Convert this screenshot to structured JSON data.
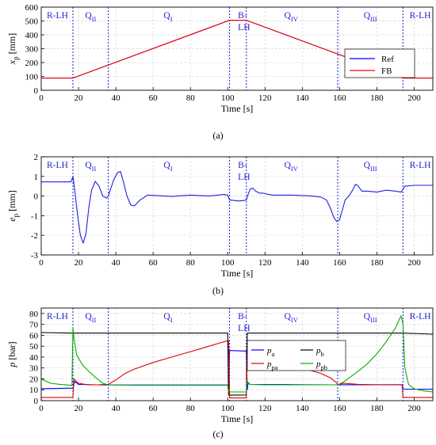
{
  "chart_data": [
    {
      "type": "line",
      "caption": "(a)",
      "xlabel": "Time [s]",
      "ylabel_main": "x",
      "ylabel_sub": "p",
      "ylabel_unit": "[mm]",
      "xlim": [
        0,
        210
      ],
      "ylim": [
        0,
        600
      ],
      "xticks": [
        0,
        20,
        40,
        60,
        80,
        100,
        120,
        140,
        160,
        180,
        200
      ],
      "yticks": [
        0,
        100,
        200,
        300,
        400,
        500,
        600
      ],
      "grid": true,
      "legend_position": "right",
      "boundaries": [
        17,
        36,
        101,
        110,
        159,
        194
      ],
      "regions": [
        {
          "lines": [
            "R-LH"
          ],
          "x": 3
        },
        {
          "main": "Q",
          "sub": "II",
          "x": 26.5
        },
        {
          "main": "Q",
          "sub": "I",
          "x": 68
        },
        {
          "lines": [
            "B-",
            "LH"
          ],
          "x": 105.5
        },
        {
          "main": "Q",
          "sub": "IV",
          "x": 134
        },
        {
          "main": "Q",
          "sub": "III",
          "x": 176.5
        },
        {
          "lines": [
            "R-LH"
          ],
          "x": 197.5
        }
      ],
      "series": [
        {
          "name": "Ref",
          "color": "#0000ff",
          "x": [
            0,
            17,
            101,
            110,
            194,
            210
          ],
          "y": [
            88,
            88,
            505,
            505,
            88,
            88
          ]
        },
        {
          "name": "FB",
          "color": "#ff0000",
          "x": [
            0,
            17,
            101,
            110,
            194,
            210
          ],
          "y": [
            88,
            88,
            505,
            505,
            88,
            88
          ]
        }
      ]
    },
    {
      "type": "line",
      "caption": "(b)",
      "xlabel": "Time [s]",
      "ylabel_main": "e",
      "ylabel_sub": "p",
      "ylabel_unit": "[mm]",
      "xlim": [
        0,
        210
      ],
      "ylim": [
        -3,
        2
      ],
      "xticks": [
        0,
        20,
        40,
        60,
        80,
        100,
        120,
        140,
        160,
        180,
        200
      ],
      "yticks": [
        -3,
        -2,
        -1,
        0,
        1,
        2
      ],
      "grid": true,
      "boundaries": [
        17,
        36,
        101,
        110,
        159,
        194
      ],
      "regions": [
        {
          "lines": [
            "R-LH"
          ],
          "x": 3
        },
        {
          "main": "Q",
          "sub": "II",
          "x": 26.5
        },
        {
          "main": "Q",
          "sub": "I",
          "x": 68
        },
        {
          "lines": [
            "B-",
            "LH"
          ],
          "x": 105.5
        },
        {
          "main": "Q",
          "sub": "IV",
          "x": 134
        },
        {
          "main": "Q",
          "sub": "III",
          "x": 176.5
        },
        {
          "lines": [
            "R-LH"
          ],
          "x": 197.5
        }
      ],
      "series": [
        {
          "color": "#1f1fe6",
          "x": [
            0,
            10,
            16,
            17,
            18,
            19.5,
            21,
            22.5,
            24,
            25.5,
            27,
            29,
            31,
            33,
            35,
            36,
            37,
            39,
            41,
            42.5,
            44,
            46,
            48,
            50,
            53,
            57,
            62,
            70,
            80,
            90,
            98,
            100,
            101,
            103,
            106,
            109,
            110,
            111,
            112,
            113.5,
            115,
            117,
            119,
            121,
            124,
            128,
            135,
            145,
            150,
            153,
            155,
            157,
            158.5,
            160,
            161.5,
            163,
            165,
            167,
            168.5,
            170,
            172,
            175,
            180,
            185,
            190,
            193,
            194,
            195,
            200,
            205,
            210
          ],
          "y": [
            0.72,
            0.72,
            0.72,
            1.0,
            0.3,
            -1.0,
            -2.0,
            -2.4,
            -1.9,
            -0.6,
            0.3,
            0.75,
            0.5,
            0.0,
            -0.1,
            0.0,
            0.3,
            0.85,
            1.2,
            1.25,
            0.75,
            0.0,
            -0.45,
            -0.5,
            -0.2,
            0.05,
            0.02,
            -0.02,
            0.05,
            0.0,
            0.08,
            0.05,
            -0.2,
            -0.22,
            -0.25,
            -0.22,
            -0.2,
            0.1,
            0.35,
            0.4,
            0.25,
            0.15,
            0.15,
            0.1,
            0.05,
            0.05,
            0.05,
            0.0,
            -0.05,
            -0.2,
            -0.6,
            -1.1,
            -1.3,
            -1.2,
            -0.7,
            -0.2,
            0.0,
            0.3,
            0.6,
            0.5,
            0.25,
            0.25,
            0.2,
            0.3,
            0.25,
            0.2,
            0.35,
            0.5,
            0.55,
            0.55,
            0.55
          ]
        }
      ]
    },
    {
      "type": "line",
      "caption": "(c)",
      "xlabel": "Time [s]",
      "ylabel_main": "p",
      "ylabel_sub": "",
      "ylabel_unit": "[bar]",
      "xlim": [
        0,
        210
      ],
      "ylim": [
        0,
        85
      ],
      "xticks": [
        0,
        20,
        40,
        60,
        80,
        100,
        120,
        140,
        160,
        180,
        200
      ],
      "yticks": [
        0,
        10,
        20,
        30,
        40,
        50,
        60,
        70,
        80
      ],
      "grid": true,
      "legend_position": "center-right",
      "boundaries": [
        17,
        36,
        101,
        110,
        159,
        194
      ],
      "regions": [
        {
          "lines": [
            "R-LH"
          ],
          "x": 3
        },
        {
          "main": "Q",
          "sub": "II",
          "x": 26.5
        },
        {
          "main": "Q",
          "sub": "I",
          "x": 68
        },
        {
          "lines": [
            "B-",
            "LH"
          ],
          "x": 105.5
        },
        {
          "main": "Q",
          "sub": "IV",
          "x": 134
        },
        {
          "main": "Q",
          "sub": "III",
          "x": 176.5
        },
        {
          "lines": [
            "R-LH"
          ],
          "x": 197.5
        }
      ],
      "series": [
        {
          "main": "p",
          "sub": "a",
          "color": "#0000ff",
          "x": [
            0,
            16.5,
            17,
            18,
            20,
            30,
            50,
            100,
            100.5,
            101,
            101.5,
            110,
            110.5,
            111,
            112,
            130,
            158,
            159,
            160,
            193,
            193.5,
            194,
            195,
            210
          ],
          "y": [
            11,
            11.5,
            11.5,
            17.5,
            15,
            14.5,
            14.3,
            14.3,
            10,
            46,
            46,
            45.5,
            10,
            16.5,
            15,
            14.8,
            14.5,
            14.5,
            14.6,
            14.7,
            14.7,
            11,
            10.5,
            10.5
          ]
        },
        {
          "main": "p",
          "sub": "b",
          "color": "#000000",
          "x": [
            0,
            16.5,
            17,
            18,
            25,
            36,
            50,
            100,
            100.5,
            101,
            110,
            110.5,
            111,
            193.5,
            194,
            210
          ],
          "y": [
            62.5,
            62,
            62,
            62,
            62,
            62,
            62,
            62,
            5,
            5,
            5.2,
            62,
            62,
            62,
            62,
            61
          ]
        },
        {
          "main": "p",
          "sub": "pa",
          "color": "#e00000",
          "x": [
            0,
            16.5,
            17,
            17.5,
            18,
            20,
            25,
            30,
            36,
            40,
            45,
            50,
            60,
            70,
            80,
            90,
            96,
            100,
            100.5,
            101,
            110,
            110.5,
            111,
            115,
            120,
            130,
            140,
            150,
            155,
            158,
            159,
            160,
            162,
            170,
            180,
            190,
            193.5,
            194,
            195,
            210
          ],
          "y": [
            3,
            3,
            3,
            20,
            19,
            16,
            14.5,
            14.5,
            15,
            19,
            25,
            29,
            35,
            40,
            45,
            50,
            53,
            55,
            55,
            2.5,
            2.5,
            47,
            45,
            41,
            38,
            34,
            30,
            25,
            21,
            17,
            15,
            15,
            16,
            15,
            14.5,
            14.5,
            14.5,
            3,
            3,
            3
          ]
        },
        {
          "main": "p",
          "sub": "pb",
          "color": "#00b000",
          "x": [
            0,
            5,
            10,
            16.5,
            17,
            17.5,
            19,
            22,
            26,
            30,
            33,
            36,
            40,
            60,
            100,
            100.5,
            101,
            110,
            110.5,
            111,
            112,
            120,
            140,
            158,
            159,
            162,
            166,
            170,
            175,
            180,
            185,
            190,
            193,
            194,
            195,
            197,
            200,
            205,
            210
          ],
          "y": [
            20,
            16,
            15,
            14,
            67,
            58,
            42,
            33,
            26,
            20,
            16,
            14.5,
            14.5,
            14.5,
            14.5,
            8,
            8,
            8,
            18,
            16.5,
            15,
            14.5,
            14.5,
            14.5,
            14.5,
            17,
            22,
            27,
            34,
            43,
            54,
            67,
            78,
            70,
            30,
            15,
            11,
            9,
            8
          ]
        }
      ]
    }
  ]
}
